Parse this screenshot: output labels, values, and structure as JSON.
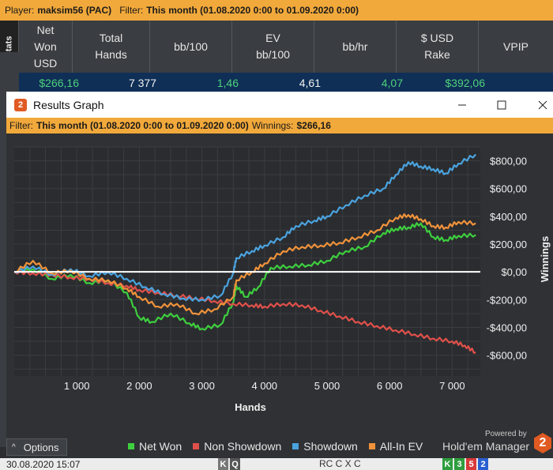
{
  "parent": {
    "player_label": "Player:",
    "player_value": "maksim56 (PAC)",
    "filter_label": "Filter:",
    "filter_value": "This month (01.08.2020 0:00 to 01.09.2020 0:00)",
    "stats_tab": "Stats",
    "columns": [
      "Net\nWon\nUSD",
      "Total\nHands",
      "bb/100",
      "EV\nbb/100",
      "bb/hr",
      "$ USD\nRake",
      "VPIP"
    ],
    "values": [
      "$266,16",
      "7 377",
      "1,46",
      "4,61",
      "4,07",
      "$392,06",
      ""
    ],
    "value_colors": [
      "green",
      "white",
      "green",
      "white",
      "green",
      "green",
      "white"
    ]
  },
  "window": {
    "logo": "2",
    "title": "Results Graph",
    "minimize_icon": "minimize-icon",
    "maximize_icon": "maximize-icon",
    "close_icon": "close-icon",
    "filter_label": "Filter:",
    "filter_value": "This month (01.08.2020 0:00 to 01.09.2020 0:00)",
    "winnings_label": "Winnings:",
    "winnings_value": "$266,16"
  },
  "chart_data": {
    "type": "line",
    "xlabel": "Hands",
    "ylabel": "Winnings",
    "xlim": [
      0,
      7450
    ],
    "ylim": [
      -750,
      900
    ],
    "xticks": [
      1000,
      2000,
      3000,
      4000,
      5000,
      6000,
      7000
    ],
    "xtick_labels": [
      "1 000",
      "2 000",
      "3 000",
      "4 000",
      "5 000",
      "6 000",
      "7 000"
    ],
    "yticks": [
      800,
      600,
      400,
      200,
      0,
      -200,
      -400,
      -600
    ],
    "ytick_labels": [
      "$800,00",
      "$600,00",
      "$400,00",
      "$200,00",
      "$0,00",
      "-$200,00",
      "-$400,00",
      "-$600,00"
    ],
    "grid": true,
    "colors": {
      "Net Won": "#3ecf3e",
      "Non Showdown": "#e0504a",
      "Showdown": "#4aa3df",
      "All-In EV": "#f0923a",
      "zero_line": "#ffffff"
    },
    "series": [
      {
        "name": "Net Won",
        "x": [
          0,
          300,
          600,
          900,
          1200,
          1500,
          1800,
          2000,
          2200,
          2500,
          2800,
          3000,
          3300,
          3500,
          3550,
          3700,
          3900,
          4100,
          4400,
          4700,
          5000,
          5300,
          5600,
          5900,
          6100,
          6300,
          6500,
          6700,
          6900,
          7100,
          7377
        ],
        "y": [
          0,
          20,
          -50,
          -20,
          -80,
          -60,
          -150,
          -330,
          -360,
          -300,
          -370,
          -410,
          -380,
          -220,
          -100,
          -180,
          -110,
          30,
          40,
          50,
          80,
          150,
          180,
          280,
          310,
          320,
          350,
          250,
          230,
          260,
          266
        ]
      },
      {
        "name": "Non Showdown",
        "x": [
          0,
          300,
          600,
          900,
          1200,
          1500,
          1800,
          2000,
          2300,
          2600,
          2900,
          3200,
          3500,
          3800,
          4000,
          4300,
          4600,
          4900,
          5200,
          5500,
          5800,
          6100,
          6400,
          6700,
          7000,
          7200,
          7377
        ],
        "y": [
          0,
          -10,
          -20,
          -40,
          -50,
          -80,
          -100,
          -130,
          -150,
          -170,
          -190,
          -210,
          -230,
          -240,
          -250,
          -230,
          -240,
          -280,
          -320,
          -360,
          -390,
          -420,
          -450,
          -480,
          -500,
          -530,
          -580
        ]
      },
      {
        "name": "Showdown",
        "x": [
          0,
          300,
          600,
          900,
          1200,
          1500,
          1800,
          2100,
          2400,
          2700,
          3000,
          3300,
          3500,
          3550,
          3800,
          4000,
          4300,
          4500,
          4800,
          5000,
          5300,
          5600,
          5900,
          6100,
          6300,
          6500,
          6700,
          6900,
          7100,
          7377
        ],
        "y": [
          0,
          40,
          -20,
          20,
          -30,
          0,
          -50,
          -110,
          -160,
          -190,
          -200,
          -170,
          -10,
          100,
          150,
          190,
          250,
          330,
          370,
          400,
          480,
          550,
          600,
          700,
          790,
          760,
          740,
          710,
          780,
          846
        ]
      },
      {
        "name": "All-In EV",
        "x": [
          0,
          300,
          600,
          900,
          1200,
          1500,
          1800,
          2000,
          2300,
          2600,
          2900,
          3200,
          3500,
          3550,
          3800,
          4000,
          4300,
          4600,
          4900,
          5200,
          5500,
          5800,
          6100,
          6300,
          6500,
          6700,
          6900,
          7100,
          7377
        ],
        "y": [
          0,
          80,
          -10,
          10,
          -50,
          -60,
          -120,
          -180,
          -250,
          -230,
          -300,
          -270,
          -180,
          -60,
          0,
          60,
          150,
          180,
          190,
          210,
          250,
          300,
          390,
          410,
          380,
          330,
          320,
          360,
          350
        ]
      }
    ]
  },
  "legend": [
    "Net Won",
    "Non Showdown",
    "Showdown",
    "All-In EV"
  ],
  "options_label": "Options",
  "brand": {
    "powered": "Powered by",
    "name": "Hold'em Manager",
    "logo": "2"
  },
  "bottom": {
    "datetime": "30.08.2020 15:07",
    "board_cards": [
      "K",
      "Q"
    ],
    "action": "RC C X C",
    "hand_cards": [
      "K",
      "3",
      "5",
      "2"
    ],
    "hand_colors": [
      "#2e9e3e",
      "#2e9e3e",
      "#d83a3a",
      "#2a5fd0"
    ]
  }
}
